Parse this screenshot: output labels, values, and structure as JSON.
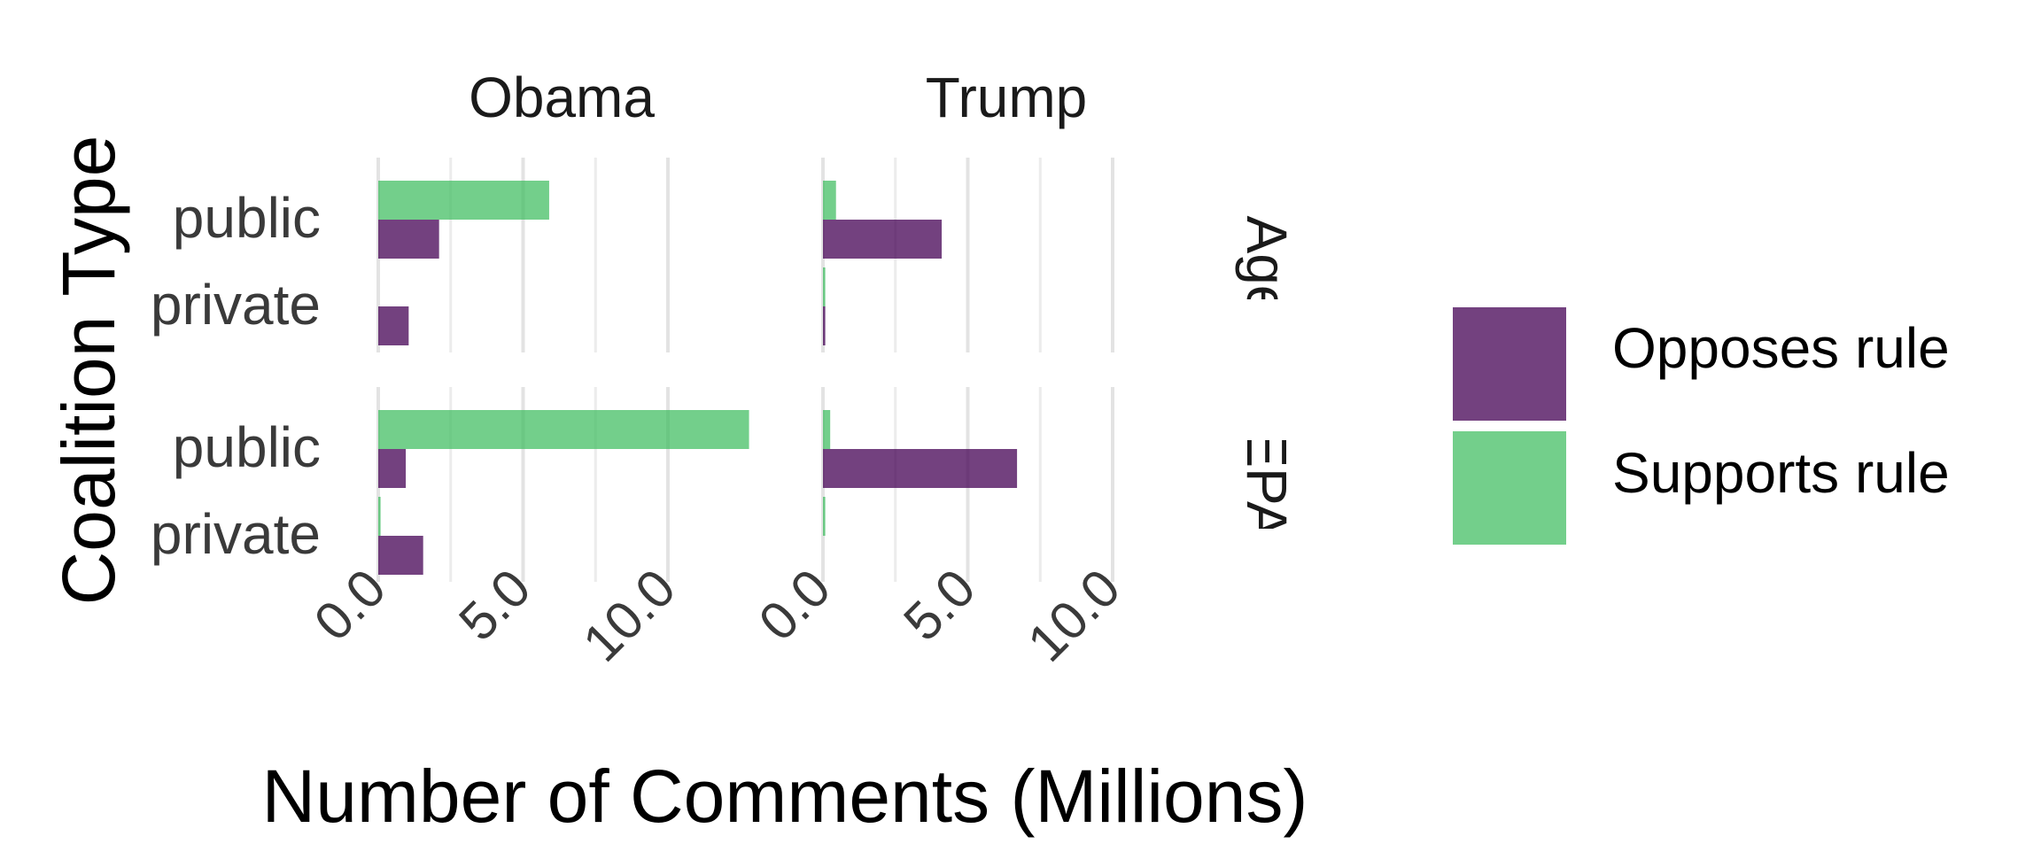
{
  "chart_data": {
    "type": "bar",
    "orientation": "horizontal",
    "xlabel": "Number of Comments (Millions)",
    "ylabel": "Coalition Type",
    "x_ticks": [
      0,
      5,
      10
    ],
    "x_tick_labels": [
      "0.0",
      "5.0",
      "10.0"
    ],
    "xlim": [
      -0.1,
      12.2
    ],
    "grid": true,
    "legend_position": "right",
    "columns": [
      "Obama",
      "Trump"
    ],
    "rows": [
      "Other Agencies",
      "EPA"
    ],
    "categories": [
      "public",
      "private"
    ],
    "series": [
      {
        "name": "Opposes rule",
        "color": "#440154"
      },
      {
        "name": "Supports rule",
        "color": "#3dbc5e"
      }
    ],
    "panels": [
      {
        "column": "Obama",
        "row": "Other Agencies",
        "values": {
          "Opposes rule": [
            2.1,
            1.05
          ],
          "Supports rule": [
            5.9,
            0.0
          ]
        }
      },
      {
        "column": "Trump",
        "row": "Other Agencies",
        "values": {
          "Opposes rule": [
            4.1,
            0.08
          ],
          "Supports rule": [
            0.45,
            0.08
          ]
        }
      },
      {
        "column": "Obama",
        "row": "EPA",
        "values": {
          "Opposes rule": [
            0.95,
            1.55
          ],
          "Supports rule": [
            12.8,
            0.08
          ]
        }
      },
      {
        "column": "Trump",
        "row": "EPA",
        "values": {
          "Opposes rule": [
            6.7,
            0.0
          ],
          "Supports rule": [
            0.25,
            0.08
          ]
        }
      }
    ]
  }
}
